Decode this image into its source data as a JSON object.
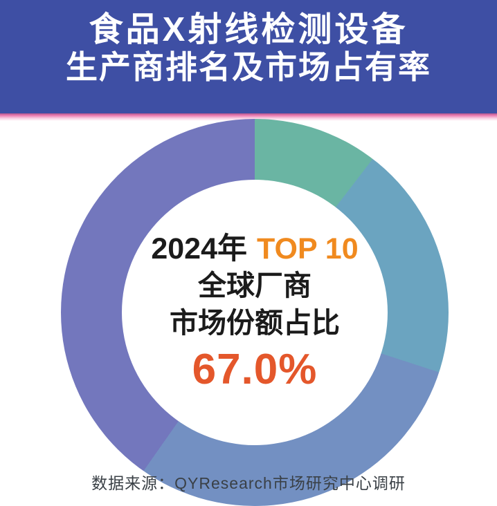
{
  "header": {
    "title_line1": "食品X射线检测设备",
    "title_line2": "生产商排名及市场占有率"
  },
  "center": {
    "year_label": "2024年",
    "top_label": "TOP 10",
    "line2": "全球厂商",
    "line3": "市场份额占比",
    "value": "67.0%"
  },
  "footer": {
    "source": "数据来源：QYResearch市场研究中心调研"
  },
  "colors": {
    "header_bg": "#3e4fa4",
    "header_text": "#ffffff",
    "divider_pink": "#ee82b5",
    "accent_orange": "#f08a1f",
    "value_orange_red": "#e4572b",
    "text_black": "#1b1b1b",
    "source_text": "#3a4046"
  },
  "chart_data": {
    "type": "pie",
    "subtype": "donut",
    "title": "食品X射线检测设备生产商排名及市场占有率",
    "year": "2024",
    "center_text": [
      "2024年 TOP 10",
      "全球厂商",
      "市场份额占比",
      "67.0%"
    ],
    "top10_share_pct": 67.0,
    "legend": "none",
    "labels_on_slices": false,
    "segments": [
      {
        "name": "teal",
        "color": "#6ab5a3",
        "start_deg": 0,
        "end_deg": 37.5,
        "share_pct_est": 10.4
      },
      {
        "name": "teal-blue",
        "color": "#6ba4c0",
        "start_deg": 37.5,
        "end_deg": 108,
        "share_pct_est": 19.6
      },
      {
        "name": "steel-blue",
        "color": "#7390c2",
        "start_deg": 108,
        "end_deg": 215,
        "share_pct_est": 29.7
      },
      {
        "name": "purple",
        "color": "#7377bd",
        "start_deg": 215,
        "end_deg": 360,
        "share_pct_est": 40.3
      }
    ],
    "layout_notes": "donut centered x=368 y=452, outer radius 280, inner radius 192, bottom edge cropped by image boundary, source caption overlaps donut bottom",
    "source": "数据来源：QYResearch市场研究中心调研"
  }
}
